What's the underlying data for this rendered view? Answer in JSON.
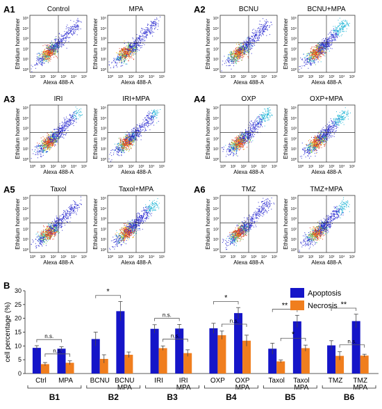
{
  "flow_panels": [
    {
      "id": "A1",
      "plots": [
        {
          "title": "Control",
          "seed": 11,
          "upper": 0.0
        },
        {
          "title": "MPA",
          "seed": 12,
          "upper": 0.05
        }
      ]
    },
    {
      "id": "A2",
      "plots": [
        {
          "title": "BCNU",
          "seed": 21,
          "upper": 0.1
        },
        {
          "title": "BCNU+MPA",
          "seed": 22,
          "upper": 0.35
        }
      ]
    },
    {
      "id": "A3",
      "plots": [
        {
          "title": "IRI",
          "seed": 31,
          "upper": 0.25
        },
        {
          "title": "IRI+MPA",
          "seed": 32,
          "upper": 0.25
        }
      ]
    },
    {
      "id": "A4",
      "plots": [
        {
          "title": "OXP",
          "seed": 41,
          "upper": 0.3
        },
        {
          "title": "OXP+MPA",
          "seed": 42,
          "upper": 0.35
        }
      ]
    },
    {
      "id": "A5",
      "plots": [
        {
          "title": "Taxol",
          "seed": 51,
          "upper": 0.1
        },
        {
          "title": "Taxol+MPA",
          "seed": 52,
          "upper": 0.3
        }
      ]
    },
    {
      "id": "A6",
      "plots": [
        {
          "title": "TMZ",
          "seed": 61,
          "upper": 0.1
        },
        {
          "title": "TMZ+MPA",
          "seed": 62,
          "upper": 0.3
        }
      ]
    }
  ],
  "flow_axes": {
    "xlabel": "Alexa 488-A",
    "ylabel": "Ethidium homodimer",
    "ticks": [
      "10⁰",
      "10¹",
      "10²",
      "10³",
      "10⁴",
      "10⁵"
    ]
  },
  "chart_data": {
    "type": "bar",
    "panel_label": "B",
    "ylabel": "cell percentage (%)",
    "ylim": [
      0,
      30
    ],
    "yticks": [
      "0",
      "5",
      "10",
      "15",
      "20",
      "25",
      "30"
    ],
    "categories": [
      "Ctrl",
      "MPA",
      "BCNU",
      "BCNU MPA",
      "IRI",
      "IRI MPA",
      "OXP",
      "OXP MPA",
      "Taxol",
      "Taxol MPA",
      "TMZ",
      "TMZ MPA"
    ],
    "series": [
      {
        "name": "Apoptosis",
        "color": "#1515c8",
        "values": [
          9.3,
          9.0,
          12.5,
          22.6,
          16.2,
          16.3,
          16.4,
          21.9,
          9.0,
          18.9,
          10.2,
          19.0
        ],
        "errors": [
          0.8,
          0.7,
          2.5,
          3.5,
          1.5,
          1.5,
          1.8,
          2.0,
          2.0,
          2.2,
          1.7,
          2.5
        ]
      },
      {
        "name": "Necrosis",
        "color": "#f07e1e",
        "values": [
          3.4,
          3.9,
          5.3,
          6.8,
          9.2,
          7.4,
          13.9,
          11.9,
          4.4,
          9.2,
          6.4,
          6.5
        ],
        "errors": [
          0.6,
          0.7,
          1.5,
          1.0,
          0.8,
          1.2,
          1.5,
          2.0,
          0.5,
          1.1,
          1.5,
          0.5
        ]
      }
    ],
    "group_labels": [
      "B1",
      "B2",
      "B3",
      "B4",
      "B5",
      "B6"
    ],
    "legend_position": "top-right",
    "significance": [
      {
        "group": 0,
        "level": "high",
        "label": "n.s."
      },
      {
        "group": 0,
        "level": "low",
        "label": "n.s."
      },
      {
        "group": 1,
        "level": "high",
        "label": "*"
      },
      {
        "group": 2,
        "level": "high",
        "label": "n.s."
      },
      {
        "group": 2,
        "level": "low",
        "label": "n.s."
      },
      {
        "group": 3,
        "level": "high",
        "label": "*"
      },
      {
        "group": 3,
        "level": "low",
        "label": "n.s."
      },
      {
        "group": 4,
        "level": "high",
        "label": "**"
      },
      {
        "group": 4,
        "level": "low",
        "label": "*"
      },
      {
        "group": 5,
        "level": "high",
        "label": "**"
      },
      {
        "group": 5,
        "level": "low",
        "label": "n.s."
      }
    ]
  }
}
